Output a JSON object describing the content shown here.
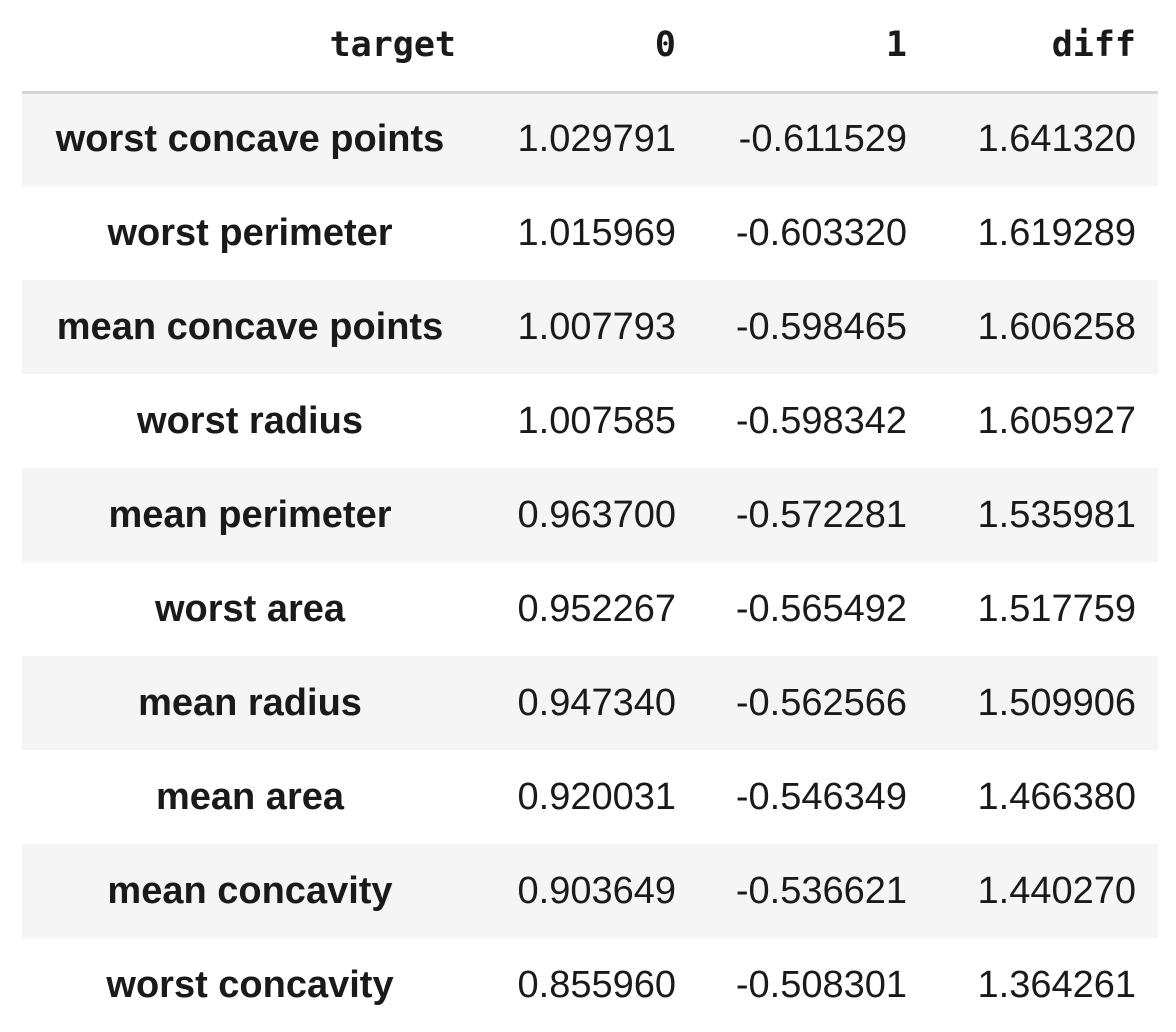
{
  "table": {
    "columns": {
      "index_header": "target",
      "col0": "0",
      "col1": "1",
      "col_diff": "diff"
    },
    "rows": [
      {
        "feature": "worst concave points",
        "v0": "1.029791",
        "v1": "-0.611529",
        "diff": "1.641320"
      },
      {
        "feature": "worst perimeter",
        "v0": "1.015969",
        "v1": "-0.603320",
        "diff": "1.619289"
      },
      {
        "feature": "mean concave points",
        "v0": "1.007793",
        "v1": "-0.598465",
        "diff": "1.606258"
      },
      {
        "feature": "worst radius",
        "v0": "1.007585",
        "v1": "-0.598342",
        "diff": "1.605927"
      },
      {
        "feature": "mean perimeter",
        "v0": "0.963700",
        "v1": "-0.572281",
        "diff": "1.535981"
      },
      {
        "feature": "worst area",
        "v0": "0.952267",
        "v1": "-0.565492",
        "diff": "1.517759"
      },
      {
        "feature": "mean radius",
        "v0": "0.947340",
        "v1": "-0.562566",
        "diff": "1.509906"
      },
      {
        "feature": "mean area",
        "v0": "0.920031",
        "v1": "-0.546349",
        "diff": "1.466380"
      },
      {
        "feature": "mean concavity",
        "v0": "0.903649",
        "v1": "-0.536621",
        "diff": "1.440270"
      },
      {
        "feature": "worst concavity",
        "v0": "0.855960",
        "v1": "-0.508301",
        "diff": "1.364261"
      }
    ]
  },
  "colors": {
    "text": "#1a1a1a",
    "stripe": "#f5f5f5",
    "header_rule": "#d6d6d6"
  }
}
